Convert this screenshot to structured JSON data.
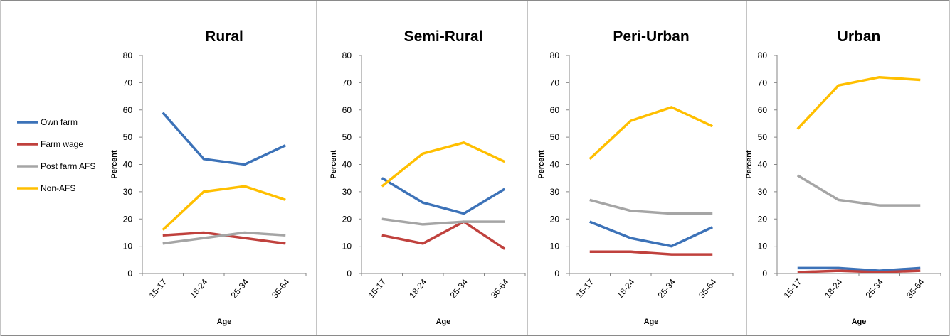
{
  "chart_data": [
    {
      "type": "line",
      "title": "Rural",
      "categories": [
        "15-17",
        "18-24",
        "25-34",
        "35-64"
      ],
      "series": [
        {
          "name": "Own farm",
          "color": "#3c72b8",
          "values": [
            59,
            42,
            40,
            47
          ]
        },
        {
          "name": "Farm wage",
          "color": "#c0413d",
          "values": [
            14,
            15,
            13,
            11
          ]
        },
        {
          "name": "Post farm AFS",
          "color": "#a5a5a5",
          "values": [
            11,
            13,
            15,
            14
          ]
        },
        {
          "name": "Non-AFS",
          "color": "#ffbf00",
          "values": [
            16,
            30,
            32,
            27
          ]
        }
      ],
      "ylim": [
        0,
        80
      ],
      "yticks": [
        0,
        10,
        20,
        30,
        40,
        50,
        60,
        70,
        80
      ],
      "y_label": "Percent",
      "x_label": "Age",
      "legend": "left"
    },
    {
      "type": "line",
      "title": "Semi-Rural",
      "categories": [
        "15-17",
        "18-24",
        "25-34",
        "35-64"
      ],
      "series": [
        {
          "name": "Own farm",
          "color": "#3c72b8",
          "values": [
            35,
            26,
            22,
            31
          ]
        },
        {
          "name": "Farm wage",
          "color": "#c0413d",
          "values": [
            14,
            11,
            19,
            9
          ]
        },
        {
          "name": "Post farm AFS",
          "color": "#a5a5a5",
          "values": [
            20,
            18,
            19,
            19
          ]
        },
        {
          "name": "Non-AFS",
          "color": "#ffbf00",
          "values": [
            32,
            44,
            48,
            41
          ]
        }
      ],
      "ylim": [
        0,
        80
      ],
      "yticks": [
        0,
        10,
        20,
        30,
        40,
        50,
        60,
        70,
        80
      ],
      "y_label": "Percent",
      "x_label": "Age"
    },
    {
      "type": "line",
      "title": "Peri-Urban",
      "categories": [
        "15-17",
        "18-24",
        "25-34",
        "35-64"
      ],
      "series": [
        {
          "name": "Own farm",
          "color": "#3c72b8",
          "values": [
            19,
            13,
            10,
            17
          ]
        },
        {
          "name": "Farm wage",
          "color": "#c0413d",
          "values": [
            8,
            8,
            7,
            7
          ]
        },
        {
          "name": "Post farm AFS",
          "color": "#a5a5a5",
          "values": [
            27,
            23,
            22,
            22
          ]
        },
        {
          "name": "Non-AFS",
          "color": "#ffbf00",
          "values": [
            42,
            56,
            61,
            54
          ]
        }
      ],
      "ylim": [
        0,
        80
      ],
      "yticks": [
        0,
        10,
        20,
        30,
        40,
        50,
        60,
        70,
        80
      ],
      "y_label": "Percent",
      "x_label": "Age"
    },
    {
      "type": "line",
      "title": "Urban",
      "categories": [
        "15-17",
        "18-24",
        "25-34",
        "35-64"
      ],
      "series": [
        {
          "name": "Own farm",
          "color": "#3c72b8",
          "values": [
            2,
            2,
            1,
            2
          ]
        },
        {
          "name": "Farm wage",
          "color": "#c0413d",
          "values": [
            0.5,
            1,
            0.5,
            1
          ]
        },
        {
          "name": "Post farm AFS",
          "color": "#a5a5a5",
          "values": [
            36,
            27,
            25,
            25
          ]
        },
        {
          "name": "Non-AFS",
          "color": "#ffbf00",
          "values": [
            53,
            69,
            72,
            71
          ]
        }
      ],
      "ylim": [
        0,
        80
      ],
      "yticks": [
        0,
        10,
        20,
        30,
        40,
        50,
        60,
        70,
        80
      ],
      "y_label": "Percent",
      "x_label": "Age"
    }
  ]
}
